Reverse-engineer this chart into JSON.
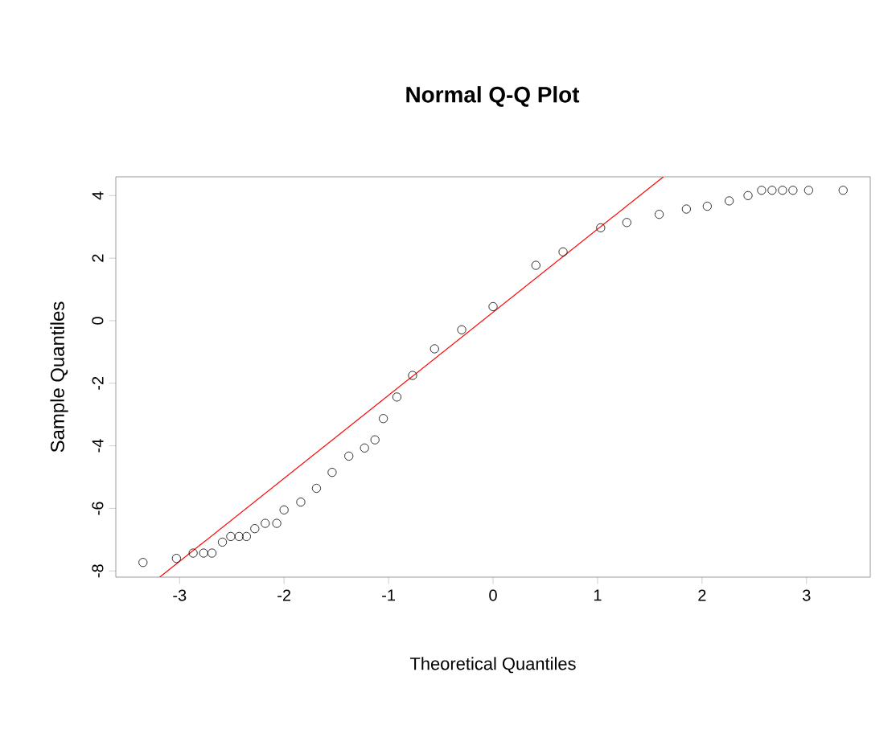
{
  "chart_data": {
    "type": "scatter",
    "title": "Normal Q-Q Plot",
    "xlabel": "Theoretical Quantiles",
    "ylabel": "Sample Quantiles",
    "xlim": [
      -3.61,
      3.61
    ],
    "ylim": [
      -8.2,
      4.6
    ],
    "xticks": [
      -3,
      -2,
      -1,
      0,
      1,
      2,
      3
    ],
    "yticks": [
      -8,
      -6,
      -4,
      -2,
      0,
      2,
      4
    ],
    "series": [
      {
        "marker": "circle",
        "color": "#000000",
        "x": [
          -3.35,
          -3.03,
          -2.87,
          -2.77,
          -2.69,
          -2.59,
          -2.51,
          -2.43,
          -2.36,
          -2.28,
          -2.18,
          -2.07,
          -2.0,
          -1.84,
          -1.69,
          -1.54,
          -1.38,
          -1.23,
          -1.13,
          -1.05,
          -0.92,
          -0.77,
          -0.56,
          -0.3,
          0.0,
          0.41,
          0.67,
          1.03,
          1.28,
          1.59,
          1.85,
          2.05,
          2.26,
          2.44,
          2.57,
          2.67,
          2.77,
          2.87,
          3.02,
          3.35
        ],
        "values": [
          -7.73,
          -7.6,
          -7.43,
          -7.43,
          -7.43,
          -7.08,
          -6.9,
          -6.9,
          -6.9,
          -6.65,
          -6.48,
          -6.48,
          -6.05,
          -5.8,
          -5.36,
          -4.85,
          -4.33,
          -4.07,
          -3.81,
          -3.13,
          -2.44,
          -1.75,
          -0.9,
          -0.29,
          0.45,
          1.77,
          2.2,
          2.97,
          3.14,
          3.4,
          3.57,
          3.66,
          3.83,
          4.0,
          4.17,
          4.17,
          4.17,
          4.17,
          4.17,
          4.17
        ]
      },
      {
        "type": "line",
        "color": "#ff0000",
        "x": [
          -3.19,
          1.63
        ],
        "values": [
          -8.2,
          4.6
        ]
      }
    ]
  }
}
